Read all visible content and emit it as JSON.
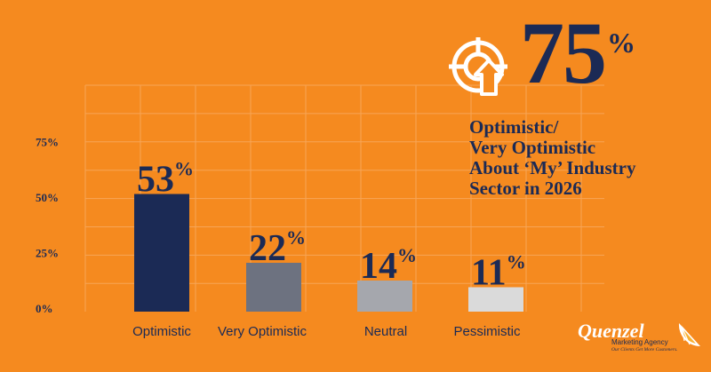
{
  "chart_data": {
    "type": "bar",
    "categories": [
      "Optimistic",
      "Very Optimistic",
      "Neutral",
      "Pessimistic"
    ],
    "values": [
      53,
      22,
      14,
      11
    ],
    "value_labels": [
      {
        "num": "53",
        "unit": "%"
      },
      {
        "num": "22",
        "unit": "%"
      },
      {
        "num": "14",
        "unit": "%"
      },
      {
        "num": "11",
        "unit": "%"
      }
    ],
    "bar_colors": [
      "#1B2A55",
      "#6D7280",
      "#A5A7AD",
      "#DADADA"
    ],
    "y_ticks": [
      {
        "value": 0,
        "label": "0%"
      },
      {
        "value": 25,
        "label": "25%"
      },
      {
        "value": 50,
        "label": "50%"
      },
      {
        "value": 75,
        "label": "75%"
      }
    ],
    "ylim": [
      0,
      100
    ],
    "grid": true
  },
  "headline": {
    "number": "75",
    "unit": "%"
  },
  "description": [
    "Optimistic/",
    "Very Optimistic",
    "About ‘My’ Industry",
    "Sector in 2026"
  ],
  "icons": {
    "target": "target-arrow-icon",
    "logo": "orange-slice-icon"
  },
  "logo": {
    "name": "Quenzel",
    "subtitle": "Marketing Agency",
    "tagline": "Our Clients Get More Customers."
  },
  "colors": {
    "background": "#F58A1F",
    "navy": "#1B2A55",
    "grid": "#F7A557"
  }
}
